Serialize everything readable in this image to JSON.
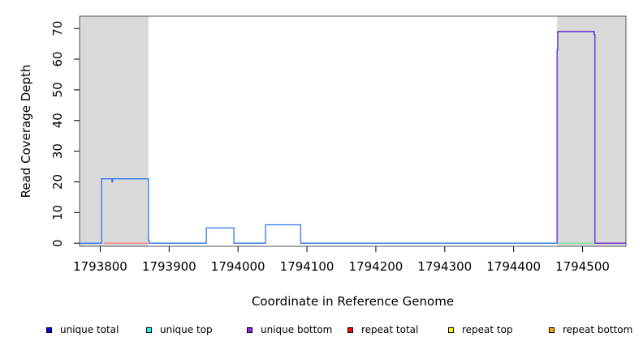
{
  "chart_data": {
    "type": "line",
    "xlabel": "Coordinate in Reference Genome",
    "ylabel": "Read Coverage Depth",
    "xlim": [
      1793770,
      1794563
    ],
    "ylim": [
      -1,
      74
    ],
    "xticks": [
      1793800,
      1793900,
      1794000,
      1794100,
      1794200,
      1794300,
      1794400,
      1794500
    ],
    "xtick_labels": [
      "1793800",
      "1793900",
      "1794000",
      "1794100",
      "1794200",
      "1794300",
      "1794400",
      "1794500"
    ],
    "yticks": [
      0,
      10,
      20,
      30,
      40,
      50,
      60,
      70
    ],
    "ytick_labels": [
      "0",
      "10",
      "20",
      "30",
      "40",
      "50",
      "60",
      "70"
    ],
    "shaded_regions": [
      [
        1793770,
        1793870
      ],
      [
        1794463,
        1794563
      ]
    ],
    "series": [
      {
        "name": "unique total",
        "color": "#2a78e6",
        "points": [
          [
            1793770,
            0
          ],
          [
            1793802,
            0
          ],
          [
            1793802,
            21
          ],
          [
            1793817,
            21
          ],
          [
            1793817,
            20
          ],
          [
            1793818,
            20
          ],
          [
            1793818,
            21
          ],
          [
            1793870,
            21
          ],
          [
            1793870,
            1
          ],
          [
            1793871,
            1
          ],
          [
            1793871,
            0
          ],
          [
            1793954,
            0
          ],
          [
            1793954,
            5
          ],
          [
            1793994,
            5
          ],
          [
            1793994,
            0
          ],
          [
            1794040,
            0
          ],
          [
            1794040,
            6
          ],
          [
            1794091,
            6
          ],
          [
            1794091,
            0
          ],
          [
            1794463,
            0
          ],
          [
            1794463,
            63
          ],
          [
            1794464,
            63
          ],
          [
            1794464,
            69
          ],
          [
            1794517,
            69
          ],
          [
            1794517,
            68
          ],
          [
            1794518,
            68
          ],
          [
            1794518,
            0
          ],
          [
            1794563,
            0
          ]
        ]
      },
      {
        "name": "unique top",
        "color": "#7be0a0",
        "points": [
          [
            1794465,
            0
          ],
          [
            1794516,
            0
          ]
        ]
      },
      {
        "name": "unique bottom",
        "color": "#7030d0",
        "points": [
          [
            1794463,
            0
          ],
          [
            1794463,
            63
          ],
          [
            1794464,
            63
          ],
          [
            1794464,
            69
          ],
          [
            1794517,
            69
          ],
          [
            1794517,
            68
          ],
          [
            1794518,
            68
          ],
          [
            1794518,
            0
          ],
          [
            1794563,
            0
          ]
        ]
      },
      {
        "name": "repeat total",
        "color": "#ff8080",
        "points": [
          [
            1793805,
            0
          ],
          [
            1793869,
            0
          ]
        ]
      }
    ],
    "legend": {
      "placement": "bottom",
      "items": [
        {
          "label": "unique total",
          "color": "#0000ff"
        },
        {
          "label": "unique top",
          "color": "#00ffff"
        },
        {
          "label": "unique bottom",
          "color": "#a020f0"
        },
        {
          "label": "repeat total",
          "color": "#ff0000"
        },
        {
          "label": "repeat top",
          "color": "#ffff00"
        },
        {
          "label": "repeat bottom",
          "color": "#ffa500"
        }
      ]
    },
    "grid": false
  }
}
